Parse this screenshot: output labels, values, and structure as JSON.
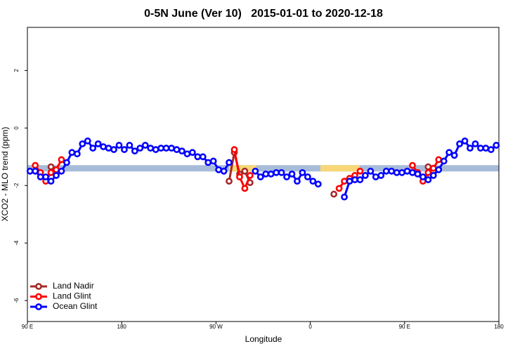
{
  "chart_data": {
    "type": "line",
    "title": "0-5N June (Ver 10)   2015-01-01 to 2020-12-18",
    "x_label": "Longitude",
    "y_label": "XCO2 - MLO trend (ppm)",
    "xlim": [
      90,
      540
    ],
    "xticks": [
      {
        "value": 90,
        "label": "90 E"
      },
      180,
      {
        "value": 270,
        "label": "90 W"
      },
      {
        "value": 360,
        "label": "0"
      },
      {
        "value": 450,
        "label": "90 E"
      },
      {
        "value": 540,
        "label": "180"
      }
    ],
    "ylim": [
      -6.73,
      3.5
    ],
    "yticks": [
      2,
      0,
      -2,
      -4,
      -6
    ],
    "legend": "bottom-left",
    "band": {
      "y": -1.4,
      "color": "#a7bcd9",
      "land_color": "#f9d776",
      "land_spans": [
        [
          282.5,
          308.6
        ],
        [
          369.6,
          407.2
        ]
      ]
    },
    "x": [
      92.5,
      97.5,
      102.5,
      107.5,
      112.5,
      117.5,
      122.5,
      127.5,
      132.5,
      137.5,
      142.5,
      147.5,
      152.5,
      157.5,
      162.5,
      167.5,
      172.5,
      177.5,
      182.5,
      187.5,
      192.5,
      197.5,
      202.5,
      207.5,
      212.5,
      217.5,
      222.5,
      227.5,
      232.5,
      237.5,
      242.5,
      247.5,
      252.5,
      257.5,
      262.5,
      267.5,
      272.5,
      277.5,
      282.5,
      287.5,
      292.5,
      297.5,
      302.5,
      307.5,
      312.5,
      317.5,
      322.5,
      327.5,
      332.5,
      337.5,
      342.5,
      347.5,
      352.5,
      357.5,
      362.5,
      367.5,
      372.5,
      377.5,
      382.5,
      387.5,
      392.5,
      397.5,
      402.5,
      407.5,
      412.5,
      417.5,
      422.5,
      427.5,
      432.5,
      437.5,
      442.5,
      447.5,
      452.5,
      457.5,
      462.5,
      467.5,
      472.5,
      477.5,
      482.5,
      487.5,
      492.5,
      497.5,
      502.5,
      507.5,
      512.5,
      517.5,
      522.5,
      527.5,
      532.5,
      537.5
    ],
    "series": [
      {
        "name": "Land Nadir",
        "color": "#a52a2a",
        "values": [
          null,
          null,
          null,
          null,
          -1.35,
          -1.6,
          null,
          null,
          null,
          null,
          null,
          null,
          null,
          null,
          null,
          null,
          null,
          null,
          null,
          null,
          null,
          null,
          null,
          null,
          null,
          null,
          null,
          null,
          null,
          null,
          null,
          null,
          null,
          null,
          null,
          null,
          null,
          null,
          -1.85,
          -0.85,
          -1.6,
          -1.5,
          -1.9,
          null,
          null,
          null,
          null,
          null,
          null,
          null,
          null,
          null,
          null,
          null,
          null,
          null,
          null,
          null,
          -2.3,
          null,
          null,
          null,
          null,
          null,
          null,
          null,
          null,
          null,
          null,
          null,
          null,
          null,
          null,
          null,
          null,
          null,
          -1.35,
          -1.5,
          null,
          null,
          null,
          null,
          null,
          null,
          null,
          null,
          null,
          null,
          null,
          null
        ]
      },
      {
        "name": "Land Glint",
        "color": "#ff0000",
        "values": [
          null,
          -1.3,
          -1.55,
          -1.85,
          -1.55,
          -1.45,
          -1.1,
          null,
          null,
          null,
          null,
          null,
          null,
          null,
          null,
          null,
          null,
          null,
          null,
          null,
          null,
          null,
          null,
          null,
          null,
          null,
          null,
          null,
          null,
          null,
          null,
          null,
          null,
          null,
          null,
          null,
          null,
          null,
          null,
          -0.75,
          -1.7,
          -2.1,
          -1.65,
          null,
          null,
          null,
          null,
          null,
          null,
          null,
          null,
          null,
          null,
          null,
          null,
          null,
          null,
          null,
          null,
          -2.1,
          -1.85,
          -1.75,
          -1.65,
          -1.5,
          null,
          null,
          null,
          null,
          null,
          null,
          null,
          null,
          null,
          -1.3,
          -1.55,
          -1.85,
          -1.55,
          -1.4,
          -1.1,
          null,
          null,
          null,
          null,
          null,
          null,
          null,
          null,
          null,
          null,
          null
        ]
      },
      {
        "name": "Ocean Glint",
        "color": "#0000ff",
        "values": [
          -1.5,
          -1.5,
          -1.7,
          -1.7,
          -1.85,
          -1.65,
          -1.5,
          -1.2,
          -0.85,
          -0.9,
          -0.55,
          -0.45,
          -0.7,
          -0.55,
          -0.65,
          -0.7,
          -0.75,
          -0.6,
          -0.75,
          -0.6,
          -0.8,
          -0.7,
          -0.6,
          -0.7,
          -0.75,
          -0.7,
          -0.7,
          -0.7,
          -0.75,
          -0.8,
          -0.9,
          -0.85,
          -1.0,
          -1.0,
          -1.2,
          -1.15,
          -1.45,
          -1.5,
          -1.2,
          null,
          null,
          null,
          null,
          -1.5,
          -1.7,
          -1.6,
          -1.6,
          -1.55,
          -1.55,
          -1.7,
          -1.6,
          -1.85,
          -1.55,
          -1.7,
          -1.85,
          -1.95,
          null,
          null,
          null,
          null,
          -2.4,
          -1.85,
          -1.8,
          -1.8,
          -1.65,
          -1.5,
          -1.7,
          -1.65,
          -1.5,
          -1.5,
          -1.55,
          -1.55,
          -1.5,
          -1.55,
          -1.6,
          -1.7,
          -1.8,
          -1.65,
          -1.45,
          -1.15,
          -0.85,
          -0.95,
          -0.55,
          -0.45,
          -0.7,
          -0.55,
          -0.7,
          -0.7,
          -0.75,
          -0.6
        ]
      }
    ]
  }
}
